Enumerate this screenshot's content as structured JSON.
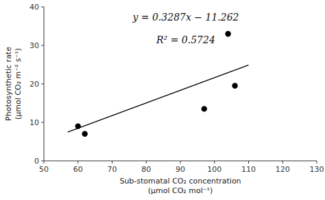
{
  "chart_data": {
    "type": "scatter",
    "x_label": "Sub-stomatal CO₂ concentration\n(μmol CO₂ mol⁻¹)",
    "y_label": "Photosynthetic rate\n(μmol CO₂ m⁻² s⁻¹)",
    "xlim": [
      50,
      130
    ],
    "ylim": [
      0,
      40
    ],
    "xticks": [
      50,
      60,
      70,
      80,
      90,
      100,
      110,
      120,
      130
    ],
    "yticks": [
      0,
      10,
      20,
      30,
      40
    ],
    "grid": false,
    "series": [
      {
        "type": "scatter",
        "color": "#000000",
        "marker": "circle",
        "x": [
          60,
          62,
          97,
          104,
          106
        ],
        "values": [
          9.0,
          7.0,
          13.5,
          33.0,
          19.5
        ]
      },
      {
        "type": "line",
        "color": "#000000",
        "line_style": "solid",
        "x": [
          57,
          110
        ],
        "values": [
          7.4739,
          24.895
        ]
      }
    ],
    "annotations": [
      "y = 0.3287x − 11.262",
      "R² = 0.5724"
    ]
  }
}
